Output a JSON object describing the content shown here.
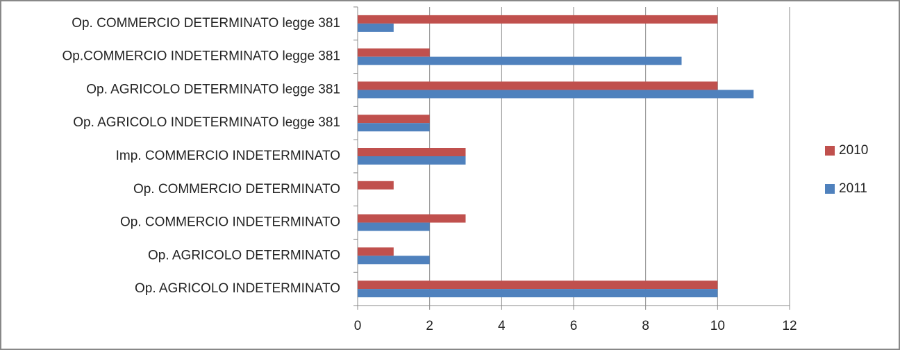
{
  "chart_data": {
    "type": "bar",
    "orientation": "horizontal",
    "categories": [
      "Op. AGRICOLO INDETERMINATO",
      "Op. AGRICOLO DETERMINATO",
      "Op. COMMERCIO INDETERMINATO",
      "Op. COMMERCIO DETERMINATO",
      "Imp. COMMERCIO INDETERMINATO",
      "Op. AGRICOLO INDETERMINATO legge 381",
      "Op. AGRICOLO DETERMINATO legge 381",
      "Op.COMMERCIO INDETERMINATO legge 381",
      "Op. COMMERCIO DETERMINATO legge 381"
    ],
    "series": [
      {
        "name": "2010",
        "color": "#c0504d",
        "values": [
          10,
          1,
          3,
          1,
          3,
          2,
          10,
          2,
          10
        ]
      },
      {
        "name": "2011",
        "color": "#4f81bd",
        "values": [
          10,
          2,
          2,
          0,
          3,
          2,
          11,
          9,
          1
        ]
      }
    ],
    "xlim": [
      0,
      12
    ],
    "xticks": [
      0,
      2,
      4,
      6,
      8,
      10,
      12
    ],
    "grid": true,
    "legend": "right"
  }
}
